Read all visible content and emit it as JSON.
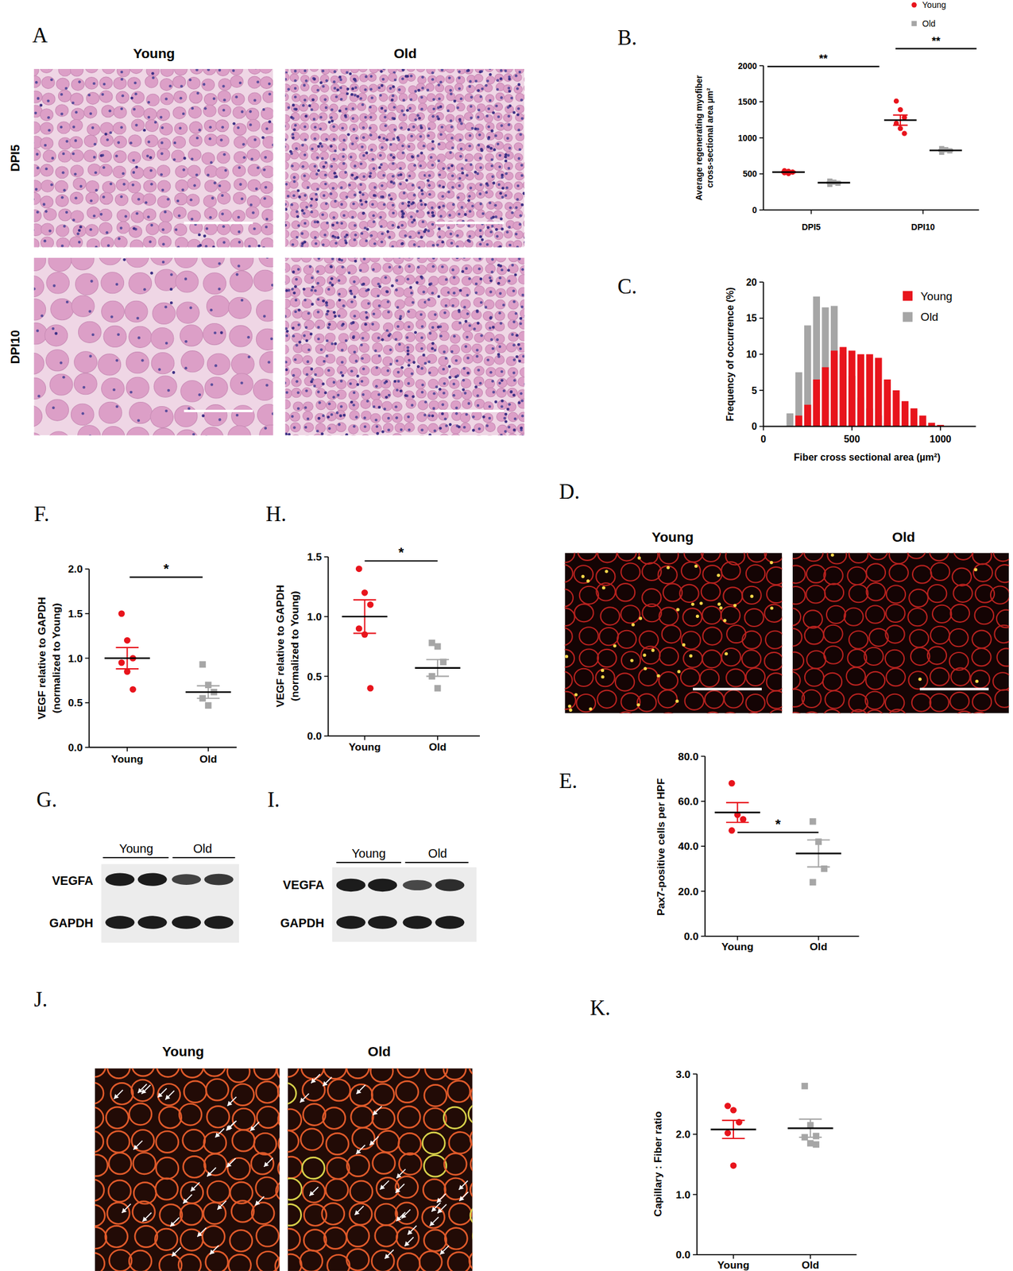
{
  "chart_data": [
    {
      "type": "dot",
      "title": "B.",
      "categories": [
        "DPI5",
        "DPI10"
      ],
      "ylabel": "Average regenerating myofiber\ncross-sectional area µm²",
      "ylim": [
        0,
        2000
      ],
      "yticks": [
        0,
        500,
        1000,
        1500,
        2000
      ],
      "legend": "upper right",
      "series": [
        {
          "name": "Young",
          "color": "#e8141c",
          "marker": "circle",
          "values": [
            [
              545,
              535,
              525,
              515,
              505
            ],
            [
              1510,
              1390,
              1280,
              1200,
              1130,
              1060
            ]
          ],
          "means": [
            525,
            1245
          ],
          "errors": [
            8,
            70
          ]
        },
        {
          "name": "Old",
          "color": "#a6a6a6",
          "marker": "square",
          "values": [
            [
              400,
              385,
              370,
              355
            ],
            [
              850,
              835,
              820,
              800
            ]
          ],
          "means": [
            378,
            826
          ],
          "errors": [
            10,
            12
          ]
        }
      ],
      "annotations": [
        "**",
        "**"
      ]
    },
    {
      "type": "histogram",
      "title": "C.",
      "xlabel": "Fiber cross sectional area (µm²)",
      "ylabel": "Frequency of occurrence (%)",
      "bins": [
        125,
        175,
        225,
        275,
        325,
        375,
        425,
        475,
        525,
        575,
        625,
        675,
        725,
        775,
        825,
        875,
        925,
        975,
        1025
      ],
      "xlim": [
        0,
        1200
      ],
      "xticks": [
        0,
        500,
        1000
      ],
      "ylim": [
        0,
        20
      ],
      "yticks": [
        0,
        5,
        10,
        15,
        20
      ],
      "legend": "upper right",
      "series": [
        {
          "name": "Young",
          "color": "#e8141c",
          "values": [
            0,
            1.5,
            3,
            6.5,
            8.2,
            10.5,
            11,
            10.5,
            10,
            10,
            9.5,
            6.5,
            5,
            3.5,
            2.5,
            1.5,
            0.5,
            0.2
          ]
        },
        {
          "name": "Old",
          "color": "#a6a6a6",
          "values": [
            1.8,
            7.5,
            14,
            18,
            16.5,
            16.7,
            10,
            7,
            4,
            2.5,
            1.5,
            0.5,
            0,
            0,
            0,
            0,
            0,
            0
          ]
        }
      ]
    },
    {
      "type": "dot",
      "title": "F.",
      "categories": [
        "Young",
        "Old"
      ],
      "ylabel": "VEGF relative to GAPDH\n(normalized to Young)",
      "ylim": [
        0,
        2.0
      ],
      "yticks": [
        {
          "value": 0,
          "label": "0.0"
        },
        {
          "value": 0.5,
          "label": "0.5"
        },
        {
          "value": 1.0,
          "label": "1.0"
        },
        {
          "value": 1.5,
          "label": "1.5"
        },
        {
          "value": 2.0,
          "label": "2.0"
        }
      ],
      "series": [
        {
          "color": "#e8141c",
          "marker": "circle",
          "values": [
            [
              1.5,
              1.2,
              1.0,
              0.95,
              0.85,
              0.65
            ],
            null
          ],
          "means": [
            1.0,
            null
          ],
          "errors": [
            0.12,
            null
          ]
        },
        {
          "color": "#a6a6a6",
          "marker": "square",
          "values": [
            null,
            [
              0.93,
              0.7,
              0.62,
              0.55,
              0.47
            ]
          ],
          "means": [
            null,
            0.62
          ],
          "errors": [
            null,
            0.07
          ]
        }
      ],
      "annotations": [
        "*"
      ]
    },
    {
      "type": "dot",
      "title": "H.",
      "categories": [
        "Young",
        "Old"
      ],
      "ylabel": "VEGF relative to GAPDH\n(normalized to Young)",
      "ylim": [
        0,
        1.5
      ],
      "yticks": [
        {
          "value": 0,
          "label": "0.0"
        },
        {
          "value": 0.5,
          "label": "0.5"
        },
        {
          "value": 1.0,
          "label": "1.0"
        },
        {
          "value": 1.5,
          "label": "1.5"
        }
      ],
      "series": [
        {
          "color": "#e8141c",
          "marker": "circle",
          "values": [
            [
              1.4,
              1.2,
              1.1,
              0.9,
              0.85,
              0.4
            ],
            null
          ],
          "means": [
            1.0,
            null
          ],
          "errors": [
            0.14,
            null
          ]
        },
        {
          "color": "#a6a6a6",
          "marker": "square",
          "values": [
            null,
            [
              0.78,
              0.75,
              0.62,
              0.5,
              0.4
            ]
          ],
          "means": [
            null,
            0.57
          ],
          "errors": [
            null,
            0.07
          ]
        }
      ],
      "annotations": [
        "*"
      ]
    },
    {
      "type": "dot",
      "title": "E.",
      "categories": [
        "Young",
        "Old"
      ],
      "ylabel": "Pax7-positive cells per HPF",
      "ylim": [
        0,
        80
      ],
      "yticks": [
        {
          "value": 0,
          "label": "0.0"
        },
        {
          "value": 20,
          "label": "20.0"
        },
        {
          "value": 40,
          "label": "40.0"
        },
        {
          "value": 60,
          "label": "60.0"
        },
        {
          "value": 80,
          "label": "80.0"
        }
      ],
      "series": [
        {
          "color": "#e8141c",
          "marker": "circle",
          "values": [
            [
              68,
              54,
              52,
              47
            ],
            null
          ],
          "means": [
            55,
            null
          ],
          "errors": [
            4.4,
            null
          ]
        },
        {
          "color": "#a6a6a6",
          "marker": "square",
          "values": [
            null,
            [
              51,
              42,
              30,
              24
            ]
          ],
          "means": [
            null,
            36.8
          ],
          "errors": [
            null,
            6
          ]
        }
      ],
      "annotations": [
        "*"
      ]
    },
    {
      "type": "dot",
      "title": "K.",
      "categories": [
        "Young",
        "Old"
      ],
      "ylabel": "Capillary : Fiber ratio",
      "ylim": [
        0,
        3.0
      ],
      "yticks": [
        {
          "value": 0,
          "label": "0.0"
        },
        {
          "value": 1.0,
          "label": "1.0"
        },
        {
          "value": 2.0,
          "label": "2.0"
        },
        {
          "value": 3.0,
          "label": "3.0"
        }
      ],
      "series": [
        {
          "color": "#e8141c",
          "marker": "circle",
          "values": [
            [
              2.47,
              2.4,
              2.2,
              2.02,
              1.48
            ],
            null
          ],
          "means": [
            2.08,
            null
          ],
          "errors": [
            0.15,
            null
          ]
        },
        {
          "color": "#a6a6a6",
          "marker": "square",
          "values": [
            null,
            [
              2.8,
              2.15,
              1.97,
              1.95,
              1.85,
              1.83
            ]
          ],
          "means": [
            null,
            2.1
          ],
          "errors": [
            null,
            0.15
          ]
        }
      ]
    }
  ],
  "images": [
    {
      "title": "A",
      "columns": [
        "Young",
        "Old"
      ],
      "rows": [
        "DPI5",
        "DPI10"
      ]
    },
    {
      "title": "D.",
      "columns": [
        "Young",
        "Old"
      ]
    },
    {
      "title": "J.",
      "columns": [
        "Young",
        "Old"
      ]
    }
  ],
  "blots": [
    {
      "title": "G.",
      "groups": [
        "Young",
        "Old"
      ],
      "bands": [
        "VEGFA",
        "GAPDH"
      ]
    },
    {
      "title": "I.",
      "groups": [
        "Young",
        "Old"
      ],
      "bands": [
        "VEGFA",
        "GAPDH"
      ]
    }
  ]
}
